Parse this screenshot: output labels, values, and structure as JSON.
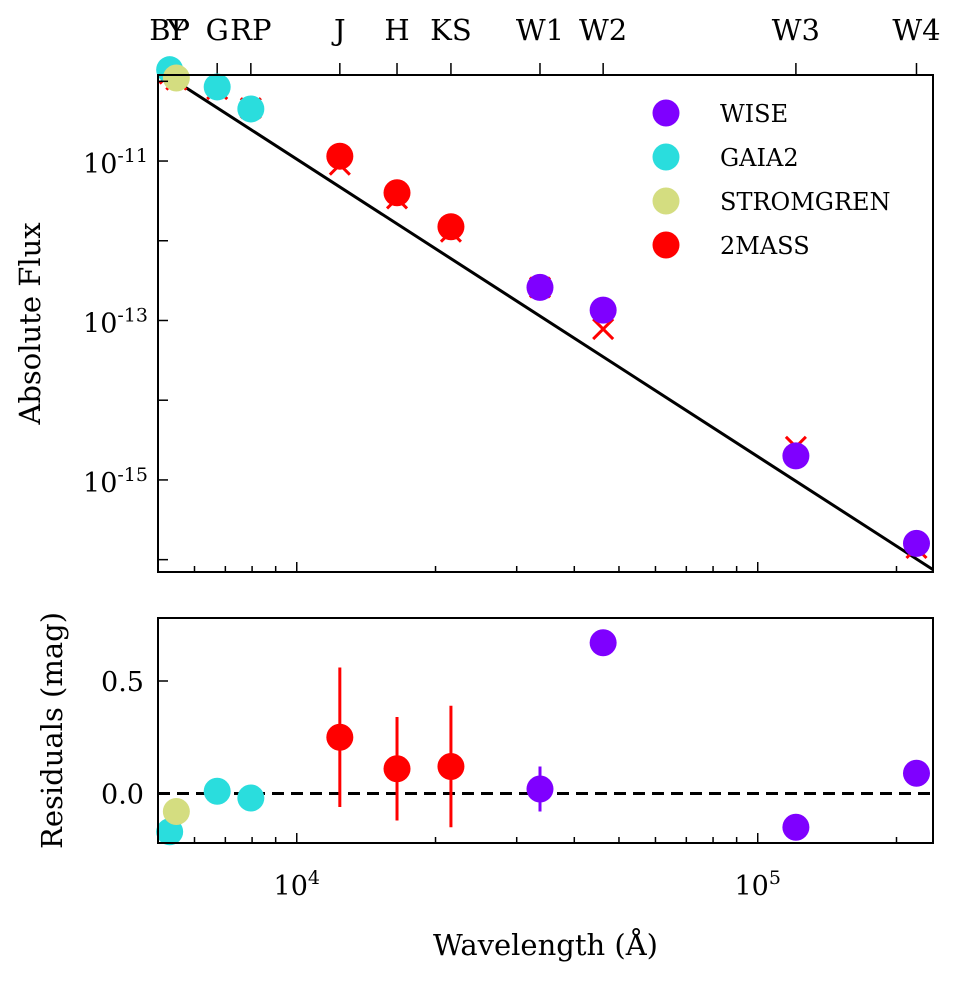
{
  "chart_data": [
    {
      "type": "scatter",
      "ylabel": "Absolute Flux",
      "xscale": "log",
      "yscale": "log",
      "xlim": [
        5000,
        240000
      ],
      "ylim": [
        7e-17,
        1.2e-10
      ],
      "yticks": [
        {
          "value": 1e-11,
          "base": "10",
          "exp": "-11"
        },
        {
          "value": 1e-13,
          "base": "10",
          "exp": "-13"
        },
        {
          "value": 1e-15,
          "base": "10",
          "exp": "-15"
        }
      ],
      "legend_position": "top-right",
      "band_labels": [
        {
          "label": "BP",
          "wavelength": 5300
        },
        {
          "label": "Y",
          "wavelength": 5480
        },
        {
          "label": "G",
          "wavelength": 6720
        },
        {
          "label": "RP",
          "wavelength": 7950
        },
        {
          "label": "J",
          "wavelength": 12400
        },
        {
          "label": "H",
          "wavelength": 16500
        },
        {
          "label": "KS",
          "wavelength": 21600
        },
        {
          "label": "W1",
          "wavelength": 33700
        },
        {
          "label": "W2",
          "wavelength": 46200
        },
        {
          "label": "W3",
          "wavelength": 121000
        },
        {
          "label": "W4",
          "wavelength": 221000
        }
      ],
      "model_line": {
        "x": [
          5000,
          240000
        ],
        "y": [
          1.4e-10,
          7.5e-17
        ],
        "color": "#000000"
      },
      "series": [
        {
          "name": "WISE",
          "color": "#7f00ff",
          "points": [
            {
              "band": "W1",
              "x": 33700,
              "y": 2.6e-13,
              "model": 2.6e-13
            },
            {
              "band": "W2",
              "x": 46200,
              "y": 1.35e-13,
              "model": 7.8e-14
            },
            {
              "band": "W3",
              "x": 121000,
              "y": 2e-15,
              "model": 2.6e-15
            },
            {
              "band": "W4",
              "x": 221000,
              "y": 1.6e-16,
              "model": 1.4e-16
            }
          ]
        },
        {
          "name": "GAIA2",
          "color": "#2adddd",
          "points": [
            {
              "band": "BP",
              "x": 5300,
              "y": 1.4e-10,
              "model": 1.25e-10
            },
            {
              "band": "G",
              "x": 6720,
              "y": 8.5e-11,
              "model": 8e-11
            },
            {
              "band": "RP",
              "x": 7950,
              "y": 4.5e-11,
              "model": 4.6e-11
            }
          ]
        },
        {
          "name": "STROMGREN",
          "color": "#d4dd80",
          "points": [
            {
              "band": "Y",
              "x": 5480,
              "y": 1.1e-10,
              "model": 1.05e-10
            }
          ]
        },
        {
          "name": "2MASS",
          "color": "#ff0000",
          "points": [
            {
              "band": "J",
              "x": 12400,
              "y": 1.15e-11,
              "model": 9e-12
            },
            {
              "band": "H",
              "x": 16500,
              "y": 4e-12,
              "model": 3.4e-12
            },
            {
              "band": "KS",
              "x": 21600,
              "y": 1.5e-12,
              "model": 1.3e-12
            }
          ]
        }
      ]
    },
    {
      "type": "scatter",
      "xlabel": "Wavelength (Å)",
      "ylabel": "Residuals (mag)",
      "xscale": "log",
      "xlim": [
        5000,
        240000
      ],
      "ylim": [
        -0.22,
        0.78
      ],
      "yticks": [
        0.5,
        0.0
      ],
      "xticks": [
        {
          "value": 10000,
          "base": "10",
          "exp": "4"
        },
        {
          "value": 100000,
          "base": "10",
          "exp": "5"
        }
      ],
      "zero_line": {
        "y": 0.0,
        "style": "dashed"
      },
      "series": [
        {
          "name": "WISE",
          "color": "#7f00ff",
          "points": [
            {
              "x": 33700,
              "y": 0.02,
              "err": 0.1
            },
            {
              "x": 46200,
              "y": 0.67,
              "err": 0.0
            },
            {
              "x": 121000,
              "y": -0.15,
              "err": 0.0
            },
            {
              "x": 221000,
              "y": 0.09,
              "err": 0.0
            }
          ]
        },
        {
          "name": "GAIA2",
          "color": "#2adddd",
          "points": [
            {
              "x": 5300,
              "y": -0.17,
              "err": 0.0
            },
            {
              "x": 6720,
              "y": 0.01,
              "err": 0.0
            },
            {
              "x": 7950,
              "y": -0.02,
              "err": 0.0
            }
          ]
        },
        {
          "name": "STROMGREN",
          "color": "#d4dd80",
          "points": [
            {
              "x": 5480,
              "y": -0.08,
              "err": 0.0
            }
          ]
        },
        {
          "name": "2MASS",
          "color": "#ff0000",
          "points": [
            {
              "x": 12400,
              "y": 0.25,
              "err": 0.31
            },
            {
              "x": 16500,
              "y": 0.11,
              "err": 0.23
            },
            {
              "x": 21600,
              "y": 0.12,
              "err": 0.27
            }
          ]
        }
      ]
    }
  ]
}
